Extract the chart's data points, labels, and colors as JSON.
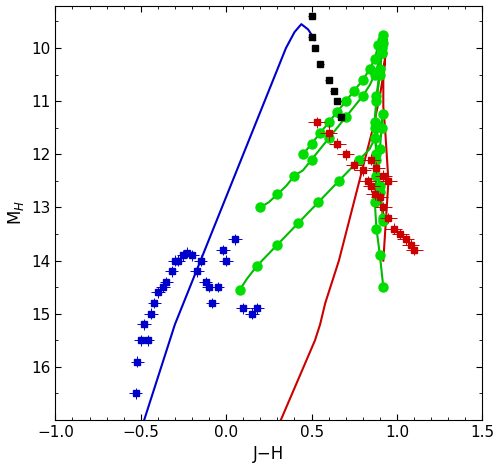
{
  "xlim": [
    -1.0,
    1.5
  ],
  "ylim": [
    17.0,
    9.2
  ],
  "xlabel": "J−H",
  "ylabel": "M$_H$",
  "xticks": [
    -1.0,
    -0.5,
    0.0,
    0.5,
    1.0,
    1.5
  ],
  "yticks": [
    10,
    11,
    12,
    13,
    14,
    15,
    16
  ],
  "M_color": "#000000",
  "L_color": "#cc0000",
  "T_color": "#0000cc",
  "red_line_color": "#cc0000",
  "blue_line_color": "#0000cc",
  "green_line_color": "#00bb00",
  "green_dot_color": "#00dd00",
  "marker_size": 5,
  "line_width": 1.5,
  "bg_color": "#ffffff",
  "M_stars_x": [
    0.5,
    0.5,
    0.52,
    0.55,
    0.6,
    0.63,
    0.65,
    0.67
  ],
  "M_stars_y": [
    9.4,
    9.8,
    10.0,
    10.3,
    10.6,
    10.8,
    11.0,
    11.3
  ],
  "M_stars_xerr": [
    0.02,
    0.02,
    0.02,
    0.02,
    0.02,
    0.02,
    0.02,
    0.02
  ],
  "M_stars_yerr": [
    0.05,
    0.05,
    0.05,
    0.05,
    0.05,
    0.05,
    0.05,
    0.05
  ],
  "L_dwarfs_x": [
    0.53,
    0.6,
    0.65,
    0.7,
    0.75,
    0.8,
    0.83,
    0.85,
    0.87,
    0.9,
    0.92,
    0.95,
    0.98,
    1.02,
    1.05,
    1.08,
    1.1,
    0.85,
    0.88,
    0.92,
    0.95
  ],
  "L_dwarfs_y": [
    11.4,
    11.6,
    11.8,
    12.0,
    12.2,
    12.3,
    12.5,
    12.6,
    12.75,
    12.8,
    13.0,
    13.2,
    13.4,
    13.5,
    13.6,
    13.7,
    13.8,
    12.1,
    12.25,
    12.4,
    12.5
  ],
  "L_dwarfs_xerr": [
    0.05,
    0.05,
    0.05,
    0.05,
    0.05,
    0.05,
    0.05,
    0.05,
    0.05,
    0.05,
    0.05,
    0.05,
    0.05,
    0.05,
    0.05,
    0.05,
    0.05,
    0.05,
    0.05,
    0.05,
    0.05
  ],
  "L_dwarfs_yerr": [
    0.1,
    0.15,
    0.1,
    0.1,
    0.1,
    0.1,
    0.1,
    0.1,
    0.1,
    0.1,
    0.1,
    0.1,
    0.1,
    0.1,
    0.1,
    0.1,
    0.1,
    0.1,
    0.1,
    0.1,
    0.1
  ],
  "T_dwarfs_x": [
    -0.53,
    -0.52,
    -0.5,
    -0.48,
    -0.46,
    -0.44,
    -0.42,
    -0.4,
    -0.37,
    -0.35,
    -0.32,
    -0.3,
    -0.28,
    -0.25,
    -0.23,
    -0.2,
    -0.17,
    -0.15,
    -0.12,
    -0.1,
    -0.08,
    -0.05,
    -0.02,
    0.0,
    0.05,
    0.1,
    0.15,
    0.18
  ],
  "T_dwarfs_y": [
    16.5,
    15.9,
    15.5,
    15.2,
    15.5,
    15.0,
    14.8,
    14.6,
    14.5,
    14.4,
    14.2,
    14.0,
    14.0,
    13.9,
    13.85,
    13.9,
    14.2,
    14.0,
    14.4,
    14.5,
    14.8,
    14.5,
    13.8,
    14.0,
    13.6,
    14.9,
    15.0,
    14.9
  ],
  "T_dwarfs_xerr": [
    0.04,
    0.04,
    0.04,
    0.04,
    0.04,
    0.04,
    0.04,
    0.04,
    0.04,
    0.04,
    0.04,
    0.04,
    0.04,
    0.04,
    0.04,
    0.04,
    0.04,
    0.04,
    0.04,
    0.04,
    0.04,
    0.04,
    0.04,
    0.04,
    0.04,
    0.04,
    0.04,
    0.04
  ],
  "T_dwarfs_yerr": [
    0.1,
    0.1,
    0.1,
    0.1,
    0.1,
    0.1,
    0.1,
    0.1,
    0.1,
    0.1,
    0.1,
    0.1,
    0.1,
    0.1,
    0.1,
    0.1,
    0.1,
    0.1,
    0.1,
    0.1,
    0.1,
    0.1,
    0.1,
    0.1,
    0.1,
    0.1,
    0.1,
    0.1
  ],
  "red_line_x": [
    0.32,
    0.36,
    0.4,
    0.44,
    0.48,
    0.52,
    0.55,
    0.58,
    0.62,
    0.66,
    0.7,
    0.74,
    0.78,
    0.82,
    0.86,
    0.88,
    0.9,
    0.92,
    0.93,
    0.94,
    0.93,
    0.92,
    0.92,
    0.93,
    0.94,
    0.95,
    0.94,
    0.93,
    0.92
  ],
  "red_line_y": [
    17.0,
    16.7,
    16.4,
    16.1,
    15.8,
    15.5,
    15.2,
    14.8,
    14.4,
    14.0,
    13.5,
    13.0,
    12.5,
    12.0,
    11.5,
    11.2,
    10.9,
    10.5,
    10.2,
    9.85,
    10.2,
    10.6,
    11.1,
    11.5,
    12.0,
    12.5,
    13.0,
    13.5,
    14.0
  ],
  "blue_line_x": [
    -0.5,
    -0.48,
    -0.45,
    -0.42,
    -0.38,
    -0.34,
    -0.3,
    -0.25,
    -0.2,
    -0.15,
    -0.1,
    -0.05,
    0.0,
    0.05,
    0.1,
    0.15,
    0.2,
    0.25,
    0.3,
    0.35,
    0.4,
    0.44,
    0.48,
    0.5,
    0.52
  ],
  "blue_line_y": [
    17.2,
    17.0,
    16.7,
    16.4,
    16.0,
    15.6,
    15.2,
    14.8,
    14.4,
    14.0,
    13.6,
    13.2,
    12.8,
    12.4,
    12.0,
    11.6,
    11.2,
    10.8,
    10.4,
    10.0,
    9.7,
    9.55,
    9.65,
    9.75,
    9.85
  ],
  "green_lines": [
    {
      "x": [
        0.45,
        0.5,
        0.55,
        0.6,
        0.65,
        0.7,
        0.75,
        0.8,
        0.84,
        0.87,
        0.89,
        0.91,
        0.92,
        0.91,
        0.9,
        0.88,
        0.87,
        0.88,
        0.9,
        0.92
      ],
      "y": [
        12.0,
        11.8,
        11.6,
        11.4,
        11.2,
        11.0,
        10.8,
        10.6,
        10.4,
        10.2,
        9.95,
        9.85,
        9.75,
        10.0,
        10.4,
        10.9,
        11.4,
        12.0,
        12.6,
        13.2
      ],
      "dots_x": [
        0.45,
        0.5,
        0.55,
        0.6,
        0.65,
        0.7,
        0.75,
        0.8,
        0.84,
        0.87,
        0.89,
        0.91,
        0.92,
        0.91,
        0.9,
        0.88,
        0.87,
        0.88,
        0.9,
        0.92
      ],
      "dots_y": [
        12.0,
        11.8,
        11.6,
        11.4,
        11.2,
        11.0,
        10.8,
        10.6,
        10.4,
        10.2,
        9.95,
        9.85,
        9.75,
        10.0,
        10.4,
        10.9,
        11.4,
        12.0,
        12.6,
        13.2
      ]
    },
    {
      "x": [
        0.2,
        0.25,
        0.3,
        0.35,
        0.4,
        0.45,
        0.5,
        0.55,
        0.6,
        0.65,
        0.7,
        0.75,
        0.8,
        0.84,
        0.87,
        0.89,
        0.91,
        0.92,
        0.91,
        0.9,
        0.88,
        0.87,
        0.88,
        0.9,
        0.92
      ],
      "y": [
        13.0,
        12.9,
        12.75,
        12.6,
        12.4,
        12.3,
        12.1,
        11.9,
        11.7,
        11.5,
        11.3,
        11.1,
        10.9,
        10.7,
        10.5,
        10.3,
        10.1,
        9.9,
        10.1,
        10.5,
        11.0,
        11.5,
        12.1,
        12.7,
        13.25
      ],
      "dots_x": [
        0.2,
        0.3,
        0.4,
        0.5,
        0.6,
        0.7,
        0.8,
        0.87,
        0.91,
        0.92,
        0.91,
        0.9,
        0.88,
        0.87,
        0.88,
        0.9,
        0.92
      ],
      "dots_y": [
        13.0,
        12.75,
        12.4,
        12.1,
        11.7,
        11.3,
        10.9,
        10.5,
        10.1,
        9.9,
        10.1,
        10.5,
        11.0,
        11.5,
        12.1,
        12.7,
        13.25
      ]
    },
    {
      "x": [
        0.08,
        0.12,
        0.18,
        0.24,
        0.3,
        0.36,
        0.42,
        0.48,
        0.54,
        0.6,
        0.66,
        0.72,
        0.78,
        0.84,
        0.87,
        0.9,
        0.92,
        0.91,
        0.9,
        0.88,
        0.87,
        0.88,
        0.9,
        0.92
      ],
      "y": [
        14.55,
        14.35,
        14.1,
        13.9,
        13.7,
        13.5,
        13.3,
        13.1,
        12.9,
        12.7,
        12.5,
        12.3,
        12.1,
        11.9,
        11.7,
        11.5,
        11.25,
        11.5,
        11.9,
        12.4,
        12.9,
        13.4,
        13.9,
        14.5
      ],
      "dots_x": [
        0.08,
        0.18,
        0.3,
        0.42,
        0.54,
        0.66,
        0.78,
        0.87,
        0.92,
        0.91,
        0.9,
        0.88,
        0.87,
        0.88,
        0.9,
        0.92
      ],
      "dots_y": [
        14.55,
        14.1,
        13.7,
        13.3,
        12.9,
        12.5,
        12.1,
        11.7,
        11.25,
        11.5,
        11.9,
        12.4,
        12.9,
        13.4,
        13.9,
        14.5
      ]
    }
  ]
}
